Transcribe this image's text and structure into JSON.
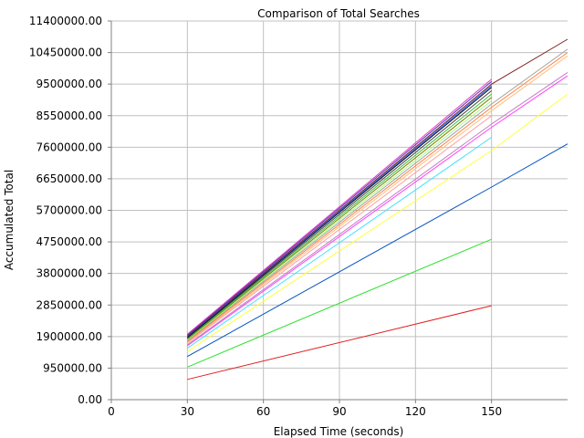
{
  "chart_data": {
    "type": "line",
    "title": "Comparison of Total Searches",
    "xlabel": "Elapsed Time (seconds)",
    "ylabel": "Accumulated Total",
    "xlim": [
      0,
      180
    ],
    "ylim": [
      0,
      11400000
    ],
    "x_ticks": [
      0,
      30,
      60,
      90,
      120,
      150
    ],
    "y_ticks": [
      0,
      950000,
      1900000,
      2850000,
      3800000,
      4750000,
      5700000,
      6650000,
      7600000,
      8550000,
      9500000,
      10450000,
      11400000
    ],
    "x_tick_labels": [
      "0",
      "30",
      "60",
      "90",
      "120",
      "150"
    ],
    "y_tick_labels": [
      "0.00",
      "950000.00",
      "1900000.00",
      "2850000.00",
      "3800000.00",
      "4750000.00",
      "5700000.00",
      "6650000.00",
      "7600000.00",
      "8550000.00",
      "9500000.00",
      "10450000.00",
      "11400000.00"
    ],
    "grid": true,
    "legend": "none",
    "series": [
      {
        "color": "#e02020",
        "points": [
          [
            30,
            610000
          ],
          [
            150,
            2830000
          ]
        ]
      },
      {
        "color": "#30e030",
        "points": [
          [
            30,
            980000
          ],
          [
            150,
            4830000
          ]
        ]
      },
      {
        "color": "#0050c0",
        "points": [
          [
            30,
            1300000
          ],
          [
            150,
            6400000
          ],
          [
            180,
            7700000
          ]
        ]
      },
      {
        "color": "#ffff40",
        "points": [
          [
            30,
            1450000
          ],
          [
            150,
            7500000
          ],
          [
            180,
            9200000
          ]
        ]
      },
      {
        "color": "#40e0ff",
        "points": [
          [
            30,
            1550000
          ],
          [
            150,
            7900000
          ]
        ]
      },
      {
        "color": "#ff40ff",
        "points": [
          [
            30,
            1620000
          ],
          [
            150,
            8200000
          ],
          [
            180,
            9750000
          ]
        ]
      },
      {
        "color": "#c080c0",
        "points": [
          [
            30,
            1650000
          ],
          [
            150,
            8300000
          ],
          [
            180,
            9850000
          ]
        ]
      },
      {
        "color": "#ffa0a0",
        "points": [
          [
            30,
            1700000
          ],
          [
            150,
            8550000
          ]
        ]
      },
      {
        "color": "#ffc080",
        "points": [
          [
            30,
            1720000
          ],
          [
            150,
            8700000
          ],
          [
            180,
            10350000
          ]
        ]
      },
      {
        "color": "#ff8040",
        "points": [
          [
            30,
            1750000
          ],
          [
            150,
            8800000
          ],
          [
            180,
            10450000
          ]
        ]
      },
      {
        "color": "#a0a0a0",
        "points": [
          [
            30,
            1780000
          ],
          [
            150,
            8900000
          ],
          [
            180,
            10550000
          ]
        ]
      },
      {
        "color": "#a0ff80",
        "points": [
          [
            30,
            1800000
          ],
          [
            150,
            9000000
          ]
        ]
      },
      {
        "color": "#808000",
        "points": [
          [
            30,
            1820000
          ],
          [
            150,
            9100000
          ]
        ]
      },
      {
        "color": "#40c040",
        "points": [
          [
            30,
            1840000
          ],
          [
            150,
            9200000
          ]
        ]
      },
      {
        "color": "#404040",
        "points": [
          [
            30,
            1860000
          ],
          [
            150,
            9300000
          ]
        ]
      },
      {
        "color": "#000000",
        "points": [
          [
            30,
            1880000
          ],
          [
            150,
            9400000
          ]
        ]
      },
      {
        "color": "#2060ff",
        "points": [
          [
            30,
            1900000
          ],
          [
            150,
            9450000
          ]
        ]
      },
      {
        "color": "#802020",
        "points": [
          [
            30,
            1920000
          ],
          [
            150,
            9500000
          ],
          [
            180,
            10850000
          ]
        ]
      },
      {
        "color": "#6020c0",
        "points": [
          [
            30,
            1950000
          ],
          [
            150,
            9580000
          ]
        ]
      },
      {
        "color": "#e040c0",
        "points": [
          [
            30,
            1970000
          ],
          [
            150,
            9650000
          ]
        ]
      }
    ]
  }
}
